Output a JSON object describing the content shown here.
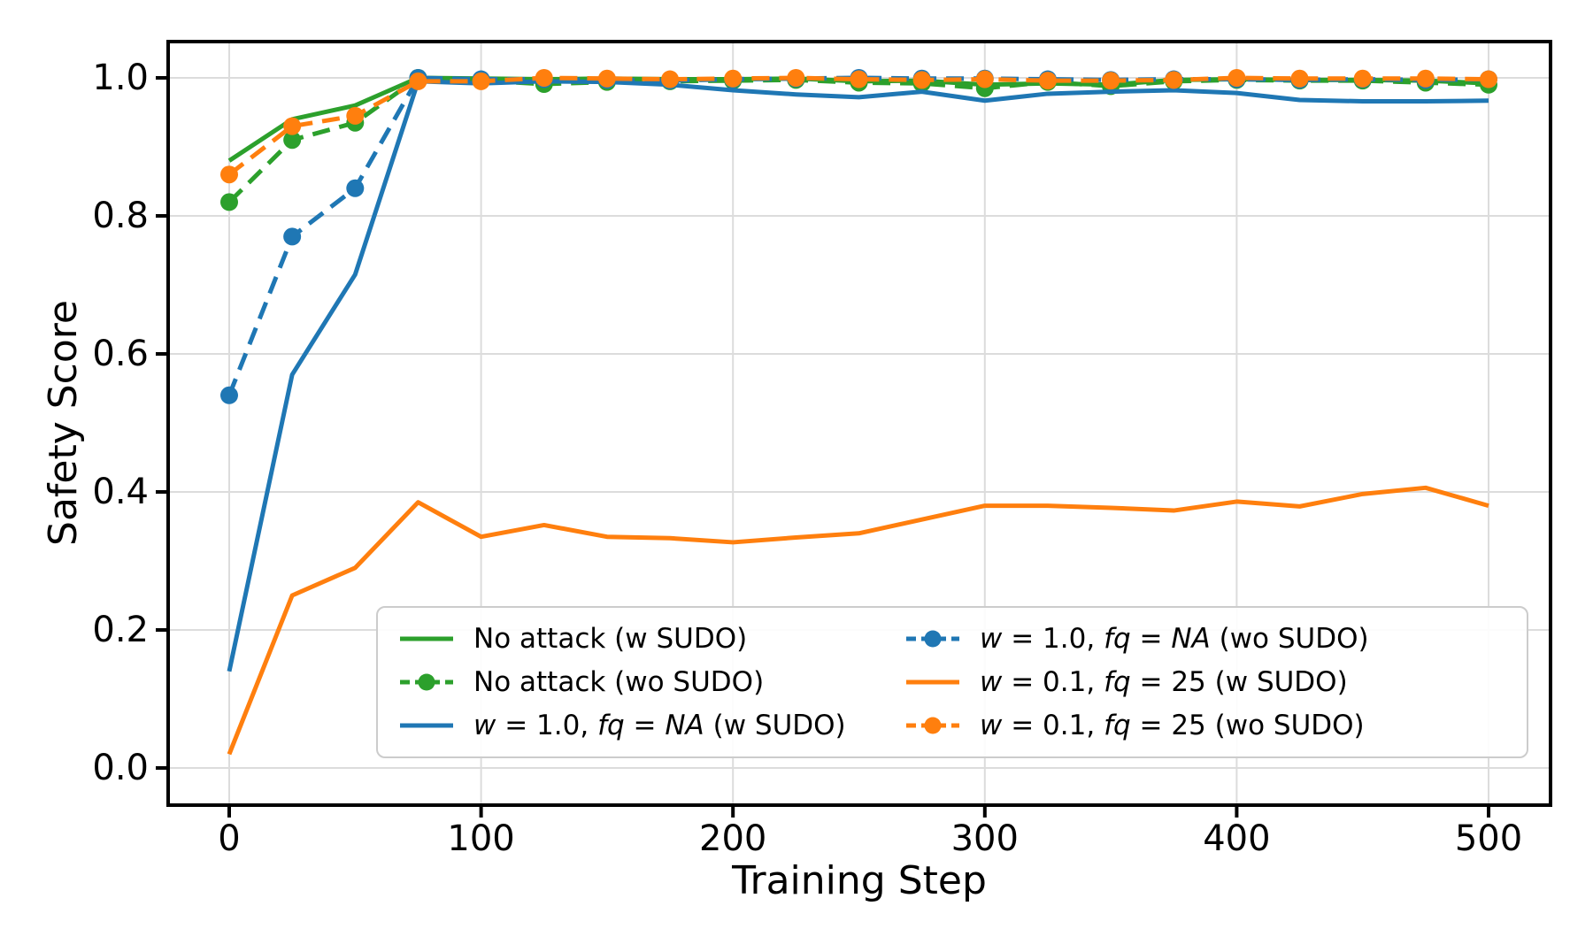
{
  "figure": {
    "background": "#ffffff",
    "text_color": "#000000",
    "grid_color": "#dcdcdc",
    "spine_color": "#000000"
  },
  "chart_data": {
    "type": "line",
    "title": "",
    "xlabel": "Training Step",
    "ylabel": "Safety Score",
    "grid": true,
    "legend_position": "lower center, 2 columns",
    "xlim": [
      -24,
      525
    ],
    "ylim": [
      -0.054,
      1.053
    ],
    "xticks": {
      "values": [
        0,
        100,
        200,
        300,
        400,
        500
      ],
      "labels": [
        "0",
        "100",
        "200",
        "300",
        "400",
        "500"
      ]
    },
    "yticks": {
      "values": [
        0.0,
        0.2,
        0.4,
        0.6,
        0.8,
        1.0
      ],
      "labels": [
        "0.0",
        "0.2",
        "0.4",
        "0.6",
        "0.8",
        "1.0"
      ]
    },
    "x": [
      0,
      25,
      50,
      75,
      100,
      125,
      150,
      175,
      200,
      225,
      250,
      275,
      300,
      325,
      350,
      375,
      400,
      425,
      450,
      475,
      500
    ],
    "series": [
      {
        "name": "No attack (w SUDO)",
        "color": "#2ca02c",
        "linestyle": "solid",
        "marker": false,
        "values": [
          0.88,
          0.94,
          0.96,
          1.0,
          0.999,
          0.998,
          0.999,
          0.998,
          0.998,
          0.999,
          0.995,
          0.996,
          0.99,
          0.992,
          0.99,
          0.997,
          0.998,
          0.997,
          0.997,
          0.996,
          0.992
        ]
      },
      {
        "name": "No attack (wo SUDO)",
        "color": "#2ca02c",
        "linestyle": "dashed",
        "marker": true,
        "values": [
          0.82,
          0.91,
          0.935,
          1.0,
          0.996,
          0.991,
          0.994,
          0.995,
          0.996,
          0.997,
          0.993,
          0.992,
          0.985,
          0.994,
          0.988,
          0.995,
          0.997,
          0.996,
          0.996,
          0.993,
          0.99
        ]
      },
      {
        "name": "w = 1.0, fq = NA (w SUDO)",
        "color": "#1f77b4",
        "linestyle": "solid",
        "marker": false,
        "values": [
          0.14,
          0.57,
          0.715,
          0.995,
          0.992,
          0.995,
          0.994,
          0.99,
          0.982,
          0.976,
          0.972,
          0.98,
          0.967,
          0.977,
          0.98,
          0.982,
          0.978,
          0.968,
          0.966,
          0.966,
          0.967
        ]
      },
      {
        "name": "w = 1.0, fq = NA (wo SUDO)",
        "color": "#1f77b4",
        "linestyle": "dashed",
        "marker": true,
        "values": [
          0.54,
          0.77,
          0.84,
          1.0,
          0.998,
          0.998,
          0.997,
          0.996,
          0.998,
          0.999,
          1.0,
          0.999,
          0.999,
          0.998,
          0.997,
          0.998,
          0.998,
          0.997,
          0.998,
          0.997,
          0.998
        ]
      },
      {
        "name": "w = 0.1, fq = 25 (w SUDO)",
        "color": "#ff7f0e",
        "linestyle": "solid",
        "marker": false,
        "values": [
          0.02,
          0.25,
          0.29,
          0.385,
          0.335,
          0.352,
          0.335,
          0.333,
          0.327,
          0.334,
          0.34,
          0.36,
          0.38,
          0.38,
          0.377,
          0.373,
          0.386,
          0.379,
          0.397,
          0.406,
          0.38
        ]
      },
      {
        "name": "w = 0.1, fq = 25 (wo SUDO)",
        "color": "#ff7f0e",
        "linestyle": "dashed",
        "marker": true,
        "values": [
          0.86,
          0.93,
          0.945,
          0.995,
          0.995,
          1.0,
          0.999,
          0.998,
          0.999,
          1.0,
          0.998,
          0.997,
          0.998,
          0.996,
          0.996,
          0.997,
          1.0,
          0.999,
          0.999,
          0.999,
          0.998
        ]
      }
    ]
  },
  "legend": {
    "items": [
      {
        "label": "No attack (w SUDO)",
        "series": 0,
        "segments": [
          {
            "t": "No attack (w SUDO)",
            "i": 0
          }
        ]
      },
      {
        "label": "No attack (wo SUDO)",
        "series": 1,
        "segments": [
          {
            "t": "No attack (wo SUDO)",
            "i": 0
          }
        ]
      },
      {
        "label": "w = 1.0, fq = NA (w SUDO)",
        "series": 2,
        "segments": [
          {
            "t": "w",
            "i": 1
          },
          {
            "t": " = 1.0, ",
            "i": 0
          },
          {
            "t": "fq",
            "i": 1
          },
          {
            "t": " = ",
            "i": 0
          },
          {
            "t": "NA",
            "i": 1
          },
          {
            "t": " (w SUDO)",
            "i": 0
          }
        ]
      },
      {
        "label": "w = 1.0, fq = NA (wo SUDO)",
        "series": 3,
        "segments": [
          {
            "t": "w",
            "i": 1
          },
          {
            "t": " = 1.0, ",
            "i": 0
          },
          {
            "t": "fq",
            "i": 1
          },
          {
            "t": " = ",
            "i": 0
          },
          {
            "t": "NA",
            "i": 1
          },
          {
            "t": " (wo SUDO)",
            "i": 0
          }
        ]
      },
      {
        "label": "w = 0.1, fq = 25 (w SUDO)",
        "series": 4,
        "segments": [
          {
            "t": "w",
            "i": 1
          },
          {
            "t": " = 0.1, ",
            "i": 0
          },
          {
            "t": "fq",
            "i": 1
          },
          {
            "t": " = 25 (w SUDO)",
            "i": 0
          }
        ]
      },
      {
        "label": "w = 0.1, fq = 25 (wo SUDO)",
        "series": 5,
        "segments": [
          {
            "t": "w",
            "i": 1
          },
          {
            "t": " = 0.1, ",
            "i": 0
          },
          {
            "t": "fq",
            "i": 1
          },
          {
            "t": " = 25 (wo SUDO)",
            "i": 0
          }
        ]
      }
    ]
  }
}
